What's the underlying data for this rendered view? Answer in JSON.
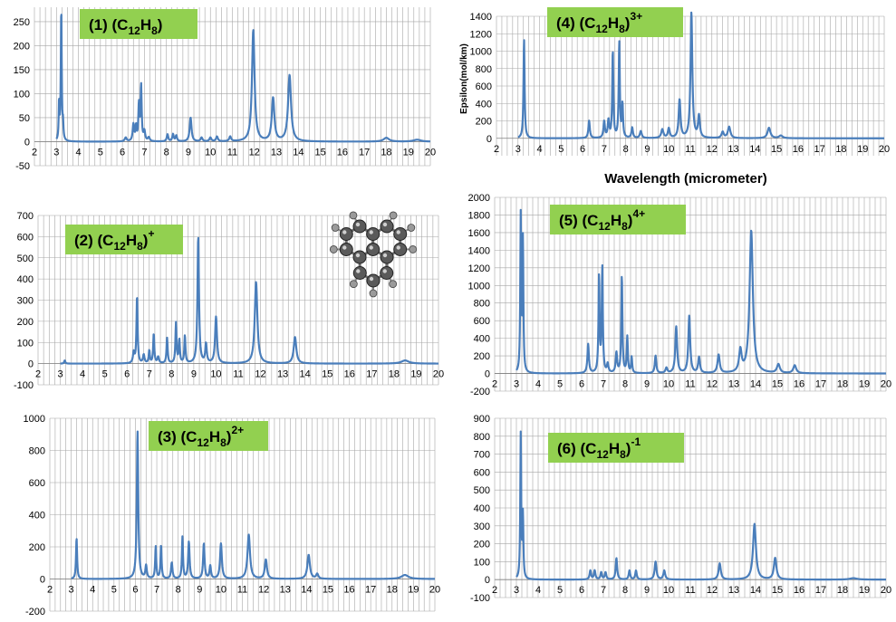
{
  "colors": {
    "series": "#4a7ebb",
    "grid": "#a6a6a6",
    "label_bg": "#92d050"
  },
  "molecule_image": {
    "icon": "naphthalene-like-molecule-ball-and-stick"
  },
  "chart_data": [
    {
      "type": "line",
      "label": {
        "main": "(1)  (C",
        "sub": "12",
        "mid": "H",
        "sub2": "8",
        "end": ")",
        "sup": ""
      },
      "xlim": [
        2,
        20
      ],
      "ylim": [
        -50,
        280
      ],
      "yticks": [
        -50,
        0,
        50,
        100,
        150,
        200,
        250
      ],
      "x_ticks": [
        2,
        3,
        4,
        5,
        6,
        7,
        8,
        9,
        10,
        11,
        12,
        13,
        14,
        15,
        16,
        17,
        18,
        19,
        20
      ],
      "grid": true,
      "xlabel": "",
      "ylabel": "",
      "peaks": [
        [
          3.12,
          80,
          0.02
        ],
        [
          3.22,
          278,
          0.025
        ],
        [
          3.3,
          30,
          0.02
        ],
        [
          6.15,
          8,
          0.05
        ],
        [
          6.5,
          35,
          0.04
        ],
        [
          6.62,
          30,
          0.03
        ],
        [
          6.75,
          75,
          0.03
        ],
        [
          6.85,
          115,
          0.03
        ],
        [
          7.0,
          20,
          0.04
        ],
        [
          7.2,
          8,
          0.05
        ],
        [
          8.05,
          15,
          0.04
        ],
        [
          8.3,
          15,
          0.04
        ],
        [
          8.45,
          12,
          0.04
        ],
        [
          9.1,
          50,
          0.05
        ],
        [
          9.6,
          8,
          0.05
        ],
        [
          10.0,
          8,
          0.05
        ],
        [
          10.3,
          10,
          0.05
        ],
        [
          10.9,
          10,
          0.05
        ],
        [
          11.95,
          232,
          0.07
        ],
        [
          12.85,
          90,
          0.07
        ],
        [
          13.6,
          138,
          0.08
        ],
        [
          18.0,
          8,
          0.15
        ],
        [
          19.4,
          4,
          0.2
        ]
      ]
    },
    {
      "type": "line",
      "label": {
        "main": "(2)  (C",
        "sub": "12",
        "mid": "H",
        "sub2": "8",
        "end": ")",
        "sup": "+"
      },
      "xlim": [
        2,
        20
      ],
      "ylim": [
        -100,
        700
      ],
      "yticks": [
        -100,
        0,
        100,
        200,
        300,
        400,
        500,
        600,
        700
      ],
      "x_ticks": [
        2,
        3,
        4,
        5,
        6,
        7,
        8,
        9,
        10,
        11,
        12,
        13,
        14,
        15,
        16,
        17,
        18,
        19,
        20
      ],
      "grid": true,
      "xlabel": "",
      "ylabel": "",
      "peaks": [
        [
          3.2,
          15,
          0.03
        ],
        [
          6.3,
          50,
          0.04
        ],
        [
          6.45,
          320,
          0.03
        ],
        [
          6.75,
          40,
          0.04
        ],
        [
          7.0,
          60,
          0.03
        ],
        [
          7.2,
          140,
          0.03
        ],
        [
          7.4,
          30,
          0.04
        ],
        [
          7.8,
          120,
          0.03
        ],
        [
          8.2,
          190,
          0.03
        ],
        [
          8.35,
          110,
          0.03
        ],
        [
          8.6,
          130,
          0.03
        ],
        [
          9.2,
          600,
          0.04
        ],
        [
          9.55,
          90,
          0.04
        ],
        [
          10.0,
          220,
          0.05
        ],
        [
          11.8,
          385,
          0.07
        ],
        [
          13.55,
          125,
          0.07
        ],
        [
          18.5,
          15,
          0.2
        ]
      ]
    },
    {
      "type": "line",
      "label": {
        "main": "(3)  (C",
        "sub": "12",
        "mid": "H",
        "sub2": "8",
        "end": ")",
        "sup": "2+"
      },
      "xlim": [
        2,
        20
      ],
      "ylim": [
        -200,
        1000
      ],
      "yticks": [
        -200,
        0,
        200,
        400,
        600,
        800,
        1000
      ],
      "x_ticks": [
        2,
        3,
        4,
        5,
        6,
        7,
        8,
        9,
        10,
        11,
        12,
        13,
        14,
        15,
        16,
        17,
        18,
        19,
        20
      ],
      "grid": true,
      "xlabel": "",
      "ylabel": "",
      "peaks": [
        [
          3.25,
          255,
          0.03
        ],
        [
          6.1,
          920,
          0.04
        ],
        [
          6.5,
          80,
          0.04
        ],
        [
          6.95,
          200,
          0.03
        ],
        [
          7.2,
          210,
          0.03
        ],
        [
          7.7,
          100,
          0.04
        ],
        [
          8.2,
          260,
          0.03
        ],
        [
          8.5,
          230,
          0.04
        ],
        [
          9.2,
          220,
          0.04
        ],
        [
          9.5,
          80,
          0.04
        ],
        [
          10.0,
          220,
          0.05
        ],
        [
          11.3,
          275,
          0.07
        ],
        [
          12.1,
          120,
          0.06
        ],
        [
          14.1,
          150,
          0.07
        ],
        [
          14.5,
          30,
          0.06
        ],
        [
          18.6,
          25,
          0.2
        ]
      ]
    },
    {
      "type": "line",
      "label": {
        "main": "(4)  (C",
        "sub": "12",
        "mid": "H",
        "sub2": "8",
        "end": ")",
        "sup": "3+"
      },
      "xlim": [
        2,
        20
      ],
      "ylim": [
        -200,
        1400
      ],
      "yticks": [
        0,
        200,
        400,
        600,
        800,
        1000,
        1200,
        1400
      ],
      "x_ticks": [
        2,
        3,
        4,
        5,
        6,
        7,
        8,
        9,
        10,
        11,
        12,
        13,
        14,
        15,
        16,
        17,
        18,
        19,
        20
      ],
      "grid": true,
      "xlabel": "Wavelength (micrometer)",
      "ylabel": "Epsilon(mol/km)",
      "peaks": [
        [
          3.28,
          1140,
          0.03
        ],
        [
          6.3,
          200,
          0.04
        ],
        [
          7.0,
          190,
          0.04
        ],
        [
          7.2,
          200,
          0.04
        ],
        [
          7.4,
          1000,
          0.03
        ],
        [
          7.7,
          1100,
          0.03
        ],
        [
          7.85,
          380,
          0.03
        ],
        [
          8.3,
          120,
          0.04
        ],
        [
          8.7,
          80,
          0.05
        ],
        [
          9.7,
          100,
          0.06
        ],
        [
          10.0,
          110,
          0.05
        ],
        [
          10.5,
          440,
          0.05
        ],
        [
          11.05,
          1440,
          0.05
        ],
        [
          11.4,
          250,
          0.05
        ],
        [
          12.5,
          70,
          0.06
        ],
        [
          12.8,
          130,
          0.07
        ],
        [
          14.65,
          120,
          0.08
        ],
        [
          15.2,
          30,
          0.1
        ]
      ]
    },
    {
      "type": "line",
      "label": {
        "main": "(5)  (C",
        "sub": "12",
        "mid": "H",
        "sub2": "8",
        "end": ")",
        "sup": "4+"
      },
      "xlim": [
        2,
        20
      ],
      "ylim": [
        -200,
        2000
      ],
      "yticks": [
        -200,
        0,
        200,
        400,
        600,
        800,
        1000,
        1200,
        1400,
        1600,
        1800,
        2000
      ],
      "x_ticks": [
        2,
        3,
        4,
        5,
        6,
        7,
        8,
        9,
        10,
        11,
        12,
        13,
        14,
        15,
        16,
        17,
        18,
        19,
        20
      ],
      "grid": true,
      "xlabel": "",
      "ylabel": "",
      "peaks": [
        [
          3.2,
          1780,
          0.025
        ],
        [
          3.3,
          1500,
          0.025
        ],
        [
          6.3,
          330,
          0.04
        ],
        [
          6.8,
          1090,
          0.03
        ],
        [
          6.95,
          1190,
          0.03
        ],
        [
          7.2,
          100,
          0.04
        ],
        [
          7.6,
          230,
          0.04
        ],
        [
          7.85,
          1110,
          0.03
        ],
        [
          8.1,
          410,
          0.03
        ],
        [
          8.3,
          180,
          0.03
        ],
        [
          9.4,
          200,
          0.04
        ],
        [
          9.9,
          60,
          0.05
        ],
        [
          10.35,
          530,
          0.05
        ],
        [
          10.95,
          650,
          0.05
        ],
        [
          11.4,
          180,
          0.05
        ],
        [
          12.3,
          210,
          0.06
        ],
        [
          13.3,
          250,
          0.07
        ],
        [
          13.8,
          1620,
          0.09
        ],
        [
          15.05,
          100,
          0.08
        ],
        [
          15.8,
          90,
          0.08
        ]
      ]
    },
    {
      "type": "line",
      "label": {
        "main": "(6)  (C",
        "sub": "12",
        "mid": "H",
        "sub2": "8",
        "end": ")",
        "sup": "-1"
      },
      "xlim": [
        2,
        20
      ],
      "ylim": [
        -100,
        900
      ],
      "yticks": [
        -100,
        0,
        100,
        200,
        300,
        400,
        500,
        600,
        700,
        800,
        900
      ],
      "x_ticks": [
        2,
        3,
        4,
        5,
        6,
        7,
        8,
        9,
        10,
        11,
        12,
        13,
        14,
        15,
        16,
        17,
        18,
        19,
        20
      ],
      "grid": true,
      "xlabel": "",
      "ylabel": "",
      "peaks": [
        [
          3.2,
          810,
          0.025
        ],
        [
          3.3,
          350,
          0.025
        ],
        [
          6.4,
          50,
          0.04
        ],
        [
          6.6,
          50,
          0.04
        ],
        [
          6.9,
          40,
          0.04
        ],
        [
          7.1,
          40,
          0.04
        ],
        [
          7.6,
          120,
          0.04
        ],
        [
          8.2,
          50,
          0.04
        ],
        [
          8.5,
          50,
          0.04
        ],
        [
          9.4,
          100,
          0.05
        ],
        [
          9.8,
          50,
          0.05
        ],
        [
          12.35,
          90,
          0.06
        ],
        [
          13.95,
          310,
          0.08
        ],
        [
          14.9,
          120,
          0.07
        ],
        [
          18.5,
          8,
          0.2
        ]
      ]
    }
  ]
}
